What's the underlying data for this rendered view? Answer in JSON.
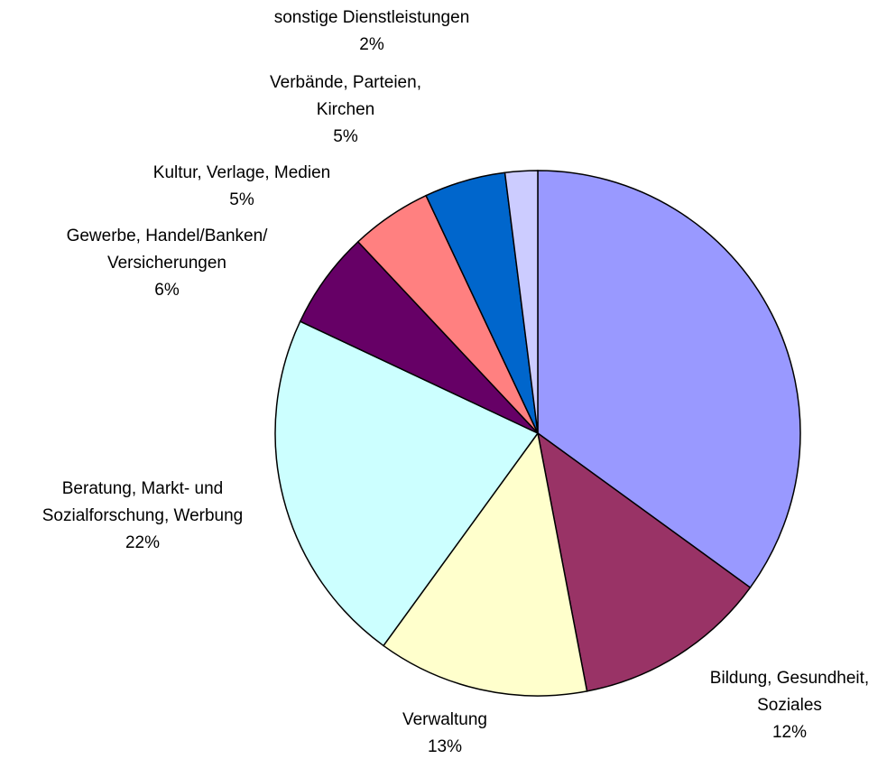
{
  "chart_data": {
    "type": "pie",
    "categories": [
      null,
      "Bildung, Gesundheit,\nSoziales",
      "Verwaltung",
      "Beratung, Markt- und\nSozialforschung, Werbung",
      "Gewerbe, Handel/Banken/\nVersicherungen",
      "Kultur, Verlage, Medien",
      "Verbände, Parteien,\nKirchen",
      "sonstige Dienstleistungen"
    ],
    "values": [
      35,
      12,
      13,
      22,
      6,
      5,
      5,
      2
    ],
    "value_labels": [
      null,
      "12%",
      "13%",
      "22%",
      "6%",
      "5%",
      "5%",
      "2%"
    ],
    "colors": [
      "#9999ff",
      "#993366",
      "#ffffcc",
      "#ccffff",
      "#660066",
      "#ff8080",
      "#0066cc",
      "#ccccff"
    ]
  }
}
